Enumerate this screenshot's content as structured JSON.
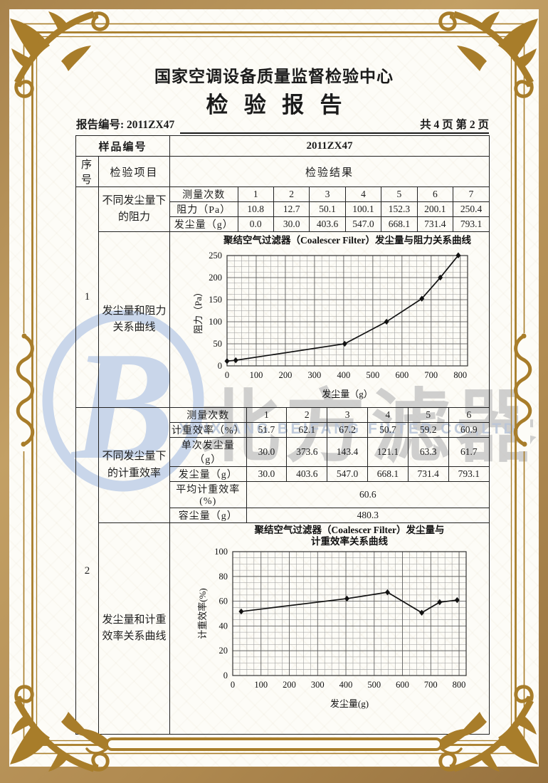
{
  "colors": {
    "frame_gold": "#a87d2a",
    "outer_tan": "#b08a50",
    "paper": "#fdfcf7",
    "watermark_blue": "#c9d6ea",
    "watermark_gray": "#c3c3c3",
    "ink": "#1c1c1c"
  },
  "header": {
    "org_title": "国家空调设备质量监督检验中心",
    "doc_title": "检验报告",
    "report_no": "报告编号: 2011ZX47",
    "page_info": "共 4 页 第 2 页"
  },
  "watermark": {
    "logo_letter": "B",
    "cn": "北方滤器",
    "en": "XINXIANG BEIFANG FILTER CO.,LTD."
  },
  "table": {
    "sample_label": "样品编号",
    "sample_value": "2011ZX47",
    "seq_header": "序号",
    "item_header": "检验项目",
    "result_header": "检验结果",
    "section1": {
      "seq": "1",
      "item_row1": "不同发尘量下的阻力",
      "item_row2": "发尘量和阻力关系曲线",
      "sub": {
        "count_label": "测量次数",
        "counts": [
          "1",
          "2",
          "3",
          "4",
          "5",
          "6",
          "7"
        ],
        "resistance_label": "阻力（Pa）",
        "resistance": [
          "10.8",
          "12.7",
          "50.1",
          "100.1",
          "152.3",
          "200.1",
          "250.4"
        ],
        "dust_label": "发尘量（g）",
        "dust": [
          "0.0",
          "30.0",
          "403.6",
          "547.0",
          "668.1",
          "731.4",
          "793.1"
        ]
      }
    },
    "section2": {
      "seq": "2",
      "item_row1": "不同发尘量下的计重效率",
      "item_row2": "发尘量和计重效率关系曲线",
      "sub": {
        "count_label": "测量次数",
        "counts": [
          "1",
          "2",
          "3",
          "4",
          "5",
          "6"
        ],
        "eff_label": "计重效率（%）",
        "eff": [
          "51.7",
          "62.1",
          "67.2",
          "50.7",
          "59.2",
          "60.9"
        ],
        "single_label": "单次发尘量（g）",
        "single": [
          "30.0",
          "373.6",
          "143.4",
          "121.1",
          "63.3",
          "61.7"
        ],
        "dust_label": "发尘量（g）",
        "dust": [
          "30.0",
          "403.6",
          "547.0",
          "668.1",
          "731.4",
          "793.1"
        ],
        "avg_label": "平均计重效率(%)",
        "avg_value": "60.6",
        "cap_label": "容尘量（g）",
        "cap_value": "480.3"
      }
    }
  },
  "chart_data": [
    {
      "type": "line",
      "title_lines": [
        "聚结空气过滤器（Coalescer Filter）发尘量与阻力关系曲线"
      ],
      "xlabel": "发尘量（g）",
      "ylabel": "阻力（Pa）",
      "x": [
        0.0,
        30.0,
        403.6,
        547.0,
        668.1,
        731.4,
        793.1
      ],
      "y": [
        10.8,
        12.7,
        50.1,
        100.1,
        152.3,
        200.1,
        250.4
      ],
      "xlim": [
        0,
        825
      ],
      "ylim": [
        0,
        250
      ],
      "xticks": [
        0,
        100,
        200,
        300,
        400,
        500,
        600,
        700,
        800
      ],
      "yticks": [
        0,
        50,
        100,
        150,
        200,
        250
      ],
      "xminor": 25,
      "yminor": 12.5,
      "grid": true,
      "legend": "none"
    },
    {
      "type": "line",
      "title_lines": [
        "聚结空气过滤器（Coalescer Filter）发尘量与",
        "计重效率关系曲线"
      ],
      "xlabel": "发尘量(g)",
      "ylabel": "计重效率(%)",
      "x": [
        30.0,
        403.6,
        547.0,
        668.1,
        731.4,
        793.1
      ],
      "y": [
        51.7,
        62.1,
        67.2,
        50.7,
        59.2,
        60.9
      ],
      "xlim": [
        0,
        825
      ],
      "ylim": [
        0,
        100
      ],
      "xticks": [
        0,
        100,
        200,
        300,
        400,
        500,
        600,
        700,
        800
      ],
      "yticks": [
        0,
        20,
        40,
        60,
        80,
        100
      ],
      "xminor": 25,
      "yminor": 5,
      "grid": true,
      "legend": "none"
    }
  ]
}
